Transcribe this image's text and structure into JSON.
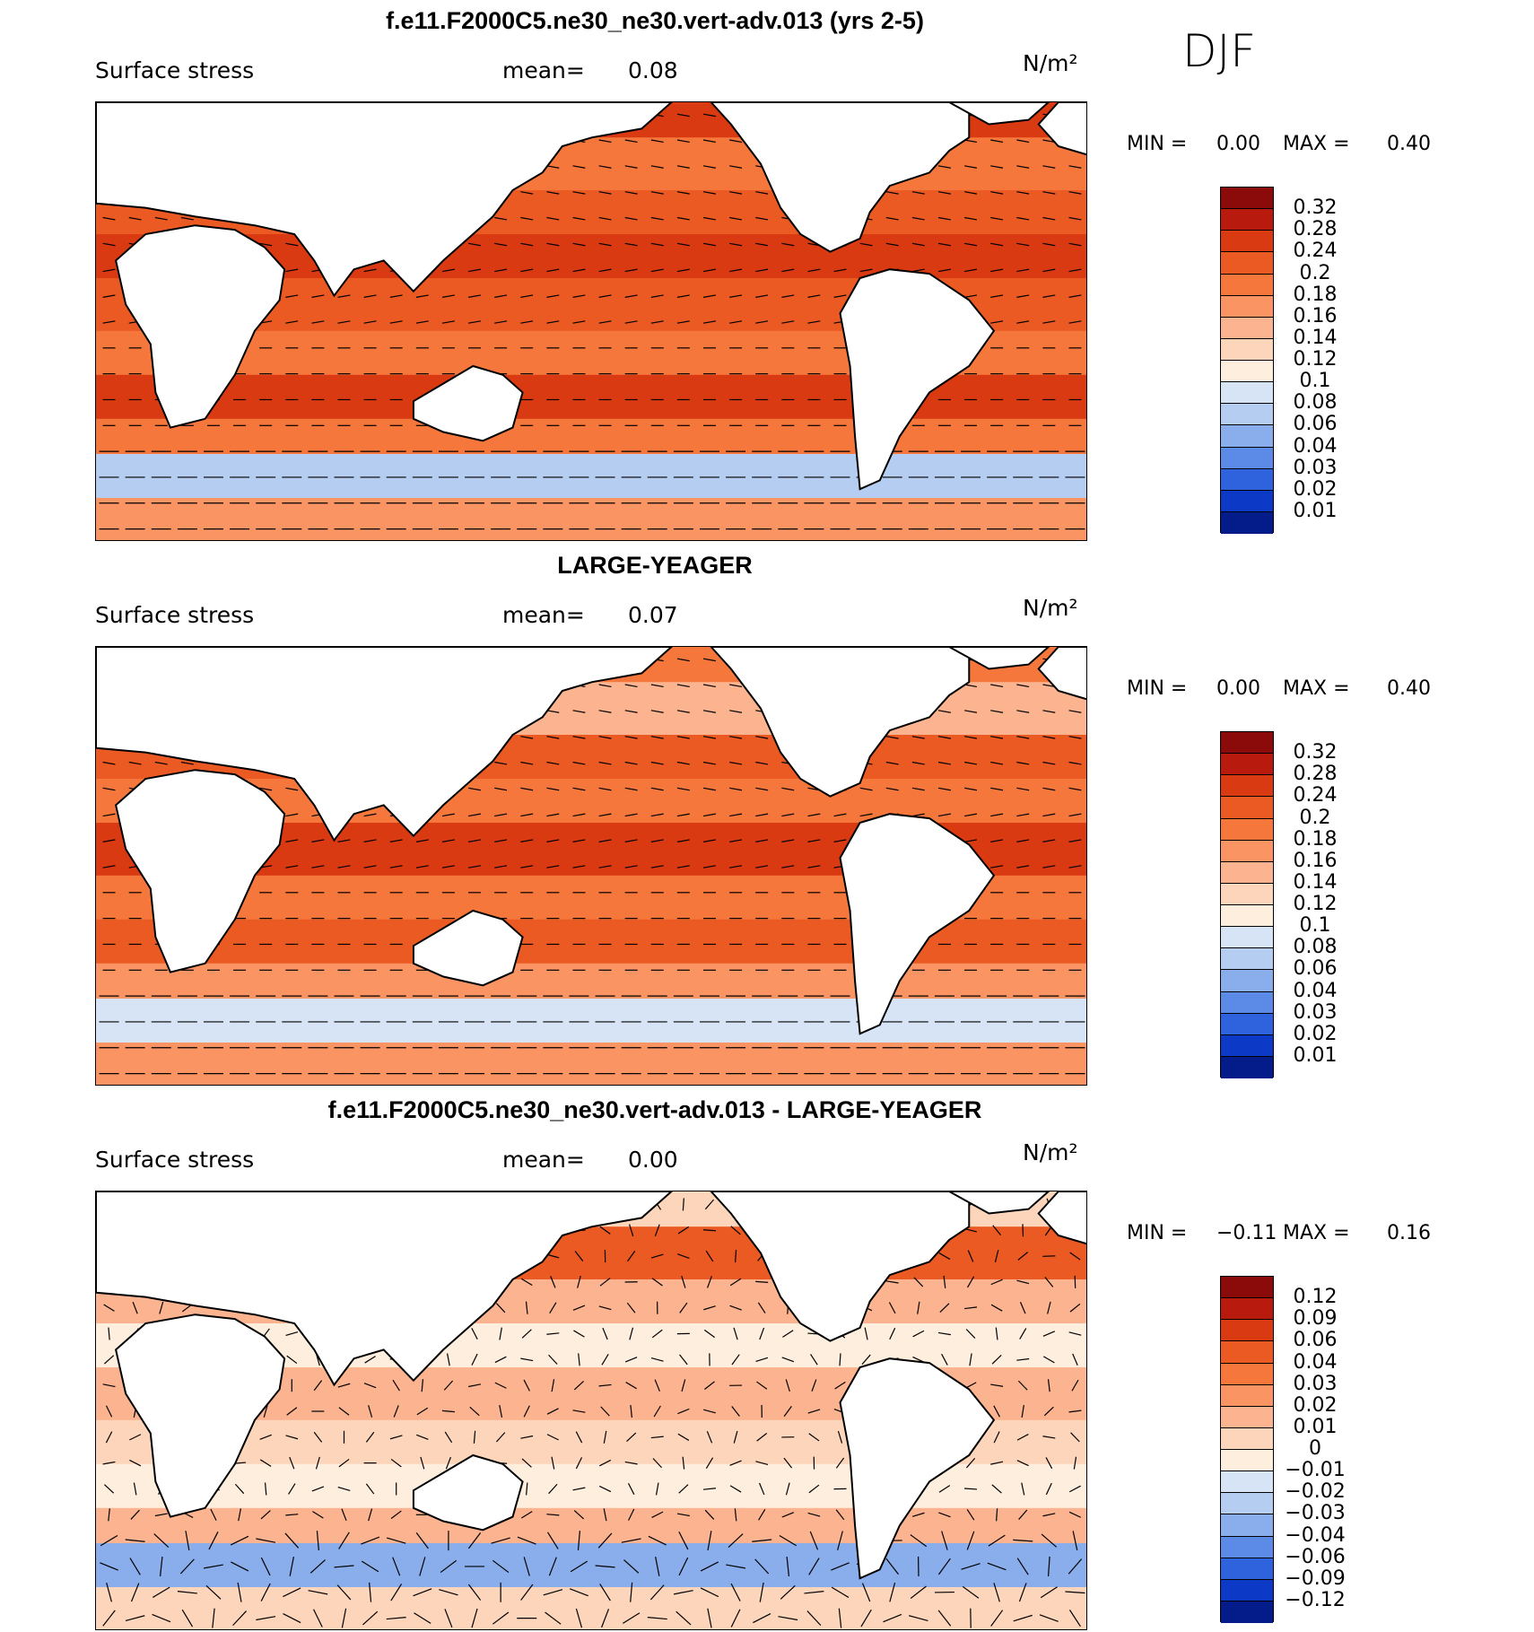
{
  "season": "DJF",
  "panels": [
    {
      "title": "f.e11.F2000C5.ne30_ne30.vert-adv.013 (yrs 2-5)",
      "variable": "Surface stress",
      "mean_label": "mean=",
      "mean_value": "0.08",
      "units": "N/m²",
      "min_label": "MIN =",
      "min_value": "0.00",
      "max_label": "MAX =",
      "max_value": "0.40",
      "colorbar": {
        "labels": [
          "0.32",
          "0.28",
          "0.24",
          "0.2",
          "0.18",
          "0.16",
          "0.14",
          "0.12",
          "0.1",
          "0.08",
          "0.06",
          "0.04",
          "0.03",
          "0.02",
          "0.01"
        ],
        "colors": [
          "#8b0a0a",
          "#b81a0e",
          "#d93a12",
          "#ea5a22",
          "#f5773c",
          "#fb9463",
          "#fcb38f",
          "#fdd5bb",
          "#fdeede",
          "#d6e4f5",
          "#b4cdf0",
          "#8aaeeb",
          "#5b8be6",
          "#2f63de",
          "#0c39c6",
          "#041c8a"
        ],
        "fill_mean": 0.3
      }
    },
    {
      "title": "LARGE-YEAGER",
      "variable": "Surface stress",
      "mean_label": "mean=",
      "mean_value": "0.07",
      "units": "N/m²",
      "min_label": "MIN =",
      "min_value": "0.00",
      "max_label": "MAX =",
      "max_value": "0.40",
      "colorbar": {
        "labels": [
          "0.32",
          "0.28",
          "0.24",
          "0.2",
          "0.18",
          "0.16",
          "0.14",
          "0.12",
          "0.1",
          "0.08",
          "0.06",
          "0.04",
          "0.03",
          "0.02",
          "0.01"
        ],
        "colors": [
          "#8b0a0a",
          "#b81a0e",
          "#d93a12",
          "#ea5a22",
          "#f5773c",
          "#fb9463",
          "#fcb38f",
          "#fdd5bb",
          "#fdeede",
          "#d6e4f5",
          "#b4cdf0",
          "#8aaeeb",
          "#5b8be6",
          "#2f63de",
          "#0c39c6",
          "#041c8a"
        ],
        "fill_mean": 0.35
      }
    },
    {
      "title": "f.e11.F2000C5.ne30_ne30.vert-adv.013 - LARGE-YEAGER",
      "variable": "Surface stress",
      "mean_label": "mean=",
      "mean_value": "0.00",
      "units": "N/m²",
      "min_label": "MIN =",
      "min_value": "−0.11",
      "max_label": "MAX =",
      "max_value": "0.16",
      "colorbar": {
        "labels": [
          "0.12",
          "0.09",
          "0.06",
          "0.04",
          "0.03",
          "0.02",
          "0.01",
          "0",
          "−0.01",
          "−0.02",
          "−0.03",
          "−0.04",
          "−0.06",
          "−0.09",
          "−0.12"
        ],
        "colors": [
          "#8b0a0a",
          "#b81a0e",
          "#d93a12",
          "#ea5a22",
          "#f5773c",
          "#fb9463",
          "#fcb38f",
          "#fdd5bb",
          "#fdeede",
          "#d6e4f5",
          "#b4cdf0",
          "#8aaeeb",
          "#5b8be6",
          "#2f63de",
          "#0c39c6",
          "#041c8a"
        ],
        "fill_mean": 0.5
      }
    }
  ]
}
